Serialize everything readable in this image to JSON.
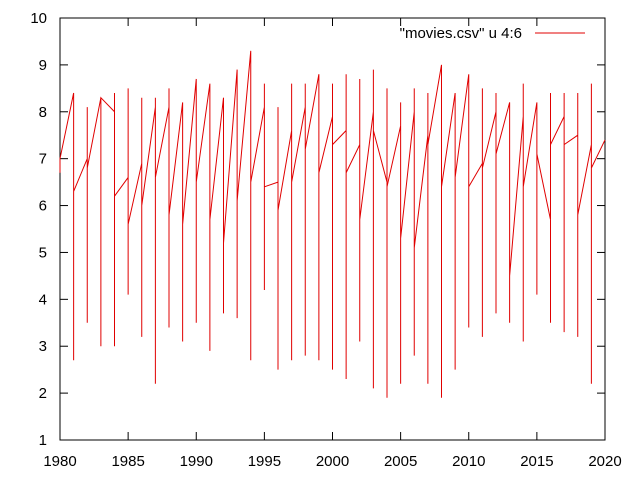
{
  "chart_data": {
    "type": "line",
    "title": "",
    "xlabel": "",
    "ylabel": "",
    "xlim": [
      1980,
      2020
    ],
    "ylim": [
      1,
      10
    ],
    "xticks": [
      1980,
      1985,
      1990,
      1995,
      2000,
      2005,
      2010,
      2015,
      2020
    ],
    "yticks": [
      1,
      2,
      3,
      4,
      5,
      6,
      7,
      8,
      9,
      10
    ],
    "grid": false,
    "legend_position": "top-right",
    "colors": {
      "series": "#e00000",
      "axis": "#000000"
    },
    "series": [
      {
        "name": "\"movies.csv\" u 4:6",
        "points": [
          [
            1980,
            6.7
          ],
          [
            1980,
            7.0
          ],
          [
            1981,
            8.4
          ],
          [
            1981,
            2.7
          ],
          [
            1981,
            6.3
          ],
          [
            1982,
            7.0
          ],
          [
            1982,
            8.1
          ],
          [
            1982,
            3.5
          ],
          [
            1982,
            6.8
          ],
          [
            1983,
            8.3
          ],
          [
            1983,
            3.0
          ],
          [
            1983,
            8.3
          ],
          [
            1984,
            8.0
          ],
          [
            1984,
            8.4
          ],
          [
            1984,
            3.0
          ],
          [
            1984,
            6.2
          ],
          [
            1985,
            6.6
          ],
          [
            1985,
            8.5
          ],
          [
            1985,
            4.1
          ],
          [
            1985,
            5.6
          ],
          [
            1986,
            6.9
          ],
          [
            1986,
            8.3
          ],
          [
            1986,
            3.2
          ],
          [
            1986,
            6.0
          ],
          [
            1987,
            8.1
          ],
          [
            1987,
            8.3
          ],
          [
            1987,
            2.2
          ],
          [
            1987,
            6.6
          ],
          [
            1988,
            8.1
          ],
          [
            1988,
            8.5
          ],
          [
            1988,
            3.4
          ],
          [
            1988,
            5.8
          ],
          [
            1989,
            8.2
          ],
          [
            1989,
            3.1
          ],
          [
            1989,
            5.6
          ],
          [
            1990,
            8.7
          ],
          [
            1990,
            3.5
          ],
          [
            1990,
            6.5
          ],
          [
            1991,
            8.6
          ],
          [
            1991,
            2.9
          ],
          [
            1991,
            5.7
          ],
          [
            1992,
            8.3
          ],
          [
            1992,
            3.7
          ],
          [
            1992,
            5.2
          ],
          [
            1993,
            8.9
          ],
          [
            1993,
            3.6
          ],
          [
            1993,
            6.1
          ],
          [
            1994,
            9.3
          ],
          [
            1994,
            2.7
          ],
          [
            1994,
            6.5
          ],
          [
            1995,
            8.1
          ],
          [
            1995,
            8.6
          ],
          [
            1995,
            4.2
          ],
          [
            1995,
            6.4
          ],
          [
            1996,
            6.5
          ],
          [
            1996,
            8.1
          ],
          [
            1996,
            2.5
          ],
          [
            1996,
            5.9
          ],
          [
            1997,
            7.6
          ],
          [
            1997,
            8.6
          ],
          [
            1997,
            2.7
          ],
          [
            1997,
            6.5
          ],
          [
            1998,
            8.1
          ],
          [
            1998,
            8.6
          ],
          [
            1998,
            2.8
          ],
          [
            1998,
            7.2
          ],
          [
            1999,
            8.8
          ],
          [
            1999,
            2.7
          ],
          [
            1999,
            6.7
          ],
          [
            2000,
            7.9
          ],
          [
            2000,
            8.6
          ],
          [
            2000,
            2.5
          ],
          [
            2000,
            7.3
          ],
          [
            2001,
            7.6
          ],
          [
            2001,
            8.8
          ],
          [
            2001,
            2.3
          ],
          [
            2001,
            6.7
          ],
          [
            2002,
            7.3
          ],
          [
            2002,
            8.7
          ],
          [
            2002,
            3.1
          ],
          [
            2002,
            5.7
          ],
          [
            2003,
            8.0
          ],
          [
            2003,
            8.9
          ],
          [
            2003,
            2.1
          ],
          [
            2003,
            7.6
          ],
          [
            2004,
            6.5
          ],
          [
            2004,
            8.5
          ],
          [
            2004,
            1.9
          ],
          [
            2004,
            6.4
          ],
          [
            2005,
            7.7
          ],
          [
            2005,
            8.2
          ],
          [
            2005,
            2.2
          ],
          [
            2005,
            5.3
          ],
          [
            2006,
            8.0
          ],
          [
            2006,
            8.5
          ],
          [
            2006,
            2.8
          ],
          [
            2006,
            5.1
          ],
          [
            2007,
            7.5
          ],
          [
            2007,
            8.4
          ],
          [
            2007,
            2.2
          ],
          [
            2007,
            7.3
          ],
          [
            2008,
            9.0
          ],
          [
            2008,
            1.9
          ],
          [
            2008,
            6.4
          ],
          [
            2009,
            8.4
          ],
          [
            2009,
            2.5
          ],
          [
            2009,
            6.6
          ],
          [
            2010,
            8.8
          ],
          [
            2010,
            3.4
          ],
          [
            2010,
            6.4
          ],
          [
            2011,
            6.9
          ],
          [
            2011,
            8.5
          ],
          [
            2011,
            3.2
          ],
          [
            2011,
            6.8
          ],
          [
            2012,
            8.0
          ],
          [
            2012,
            8.4
          ],
          [
            2012,
            3.7
          ],
          [
            2012,
            7.1
          ],
          [
            2013,
            8.2
          ],
          [
            2013,
            3.5
          ],
          [
            2013,
            4.5
          ],
          [
            2014,
            7.9
          ],
          [
            2014,
            8.6
          ],
          [
            2014,
            3.1
          ],
          [
            2014,
            6.4
          ],
          [
            2015,
            8.2
          ],
          [
            2015,
            4.1
          ],
          [
            2015,
            7.1
          ],
          [
            2016,
            5.7
          ],
          [
            2016,
            8.4
          ],
          [
            2016,
            3.5
          ],
          [
            2016,
            7.3
          ],
          [
            2017,
            7.9
          ],
          [
            2017,
            8.4
          ],
          [
            2017,
            3.3
          ],
          [
            2017,
            7.3
          ],
          [
            2018,
            7.5
          ],
          [
            2018,
            8.4
          ],
          [
            2018,
            3.2
          ],
          [
            2018,
            5.8
          ],
          [
            2019,
            7.3
          ],
          [
            2019,
            8.6
          ],
          [
            2019,
            2.2
          ],
          [
            2019,
            6.8
          ],
          [
            2020,
            7.4
          ]
        ]
      }
    ]
  }
}
